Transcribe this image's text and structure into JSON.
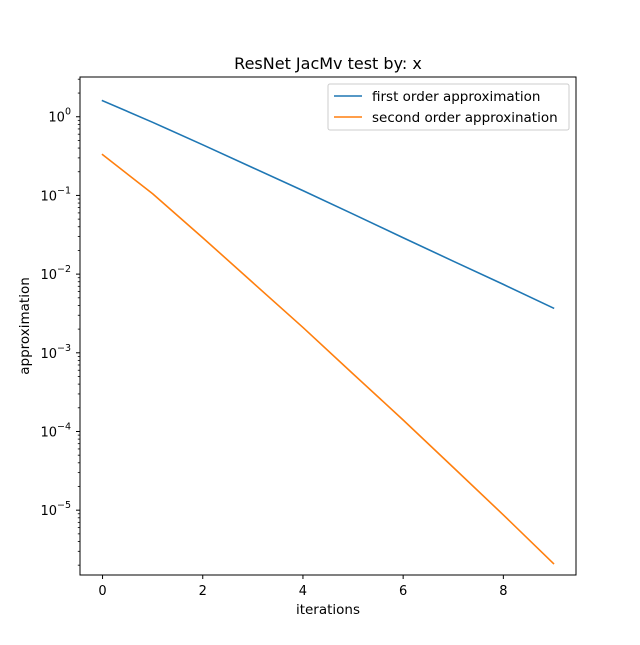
{
  "chart_data": {
    "type": "line",
    "title": "ResNet JacMv  test by: x",
    "xlabel": "iterations",
    "ylabel": "approximation",
    "yscale": "log",
    "xlim": [
      -0.45,
      9.45
    ],
    "ylim": [
      1.5e-06,
      3.2
    ],
    "x_ticks": [
      0,
      2,
      4,
      6,
      8
    ],
    "x_tick_labels": [
      "0",
      "2",
      "4",
      "6",
      "8"
    ],
    "y_ticks": [
      1,
      0.1,
      0.01,
      0.001,
      0.0001,
      1e-05
    ],
    "y_tick_labels": [
      {
        "base": "10",
        "exp": "0"
      },
      {
        "base": "10",
        "exp": "−1"
      },
      {
        "base": "10",
        "exp": "−2"
      },
      {
        "base": "10",
        "exp": "−3"
      },
      {
        "base": "10",
        "exp": "−4"
      },
      {
        "base": "10",
        "exp": "−5"
      }
    ],
    "grid": false,
    "legend_position": "upper right",
    "x": [
      0,
      1,
      2,
      3,
      4,
      5,
      6,
      7,
      8,
      9
    ],
    "series": [
      {
        "name": "first order approximation",
        "color": "#1f77b4",
        "values": [
          1.6,
          0.85,
          0.44,
          0.225,
          0.115,
          0.058,
          0.029,
          0.0146,
          0.0074,
          0.0037
        ]
      },
      {
        "name": "second order approxination",
        "color": "#ff7f0e",
        "values": [
          0.33,
          0.105,
          0.029,
          0.0078,
          0.0021,
          0.00054,
          0.00014,
          3.5e-05,
          8.7e-06,
          2.1e-06
        ]
      }
    ]
  }
}
